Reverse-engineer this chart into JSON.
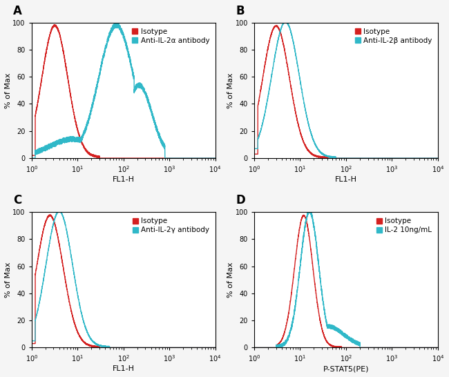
{
  "panels": [
    {
      "label": "A",
      "xlabel": "FL1-H",
      "ylabel": "% of Max",
      "legend": [
        "Isotype",
        "Anti-IL-2α antibody"
      ]
    },
    {
      "label": "B",
      "xlabel": "FL1-H",
      "ylabel": "% of Max",
      "legend": [
        "Isotype",
        "Anti-IL-2β antibody"
      ]
    },
    {
      "label": "C",
      "xlabel": "FL1-H",
      "ylabel": "% of Max",
      "legend": [
        "Isotype",
        "Anti-IL-2γ antibody"
      ]
    },
    {
      "label": "D",
      "xlabel": "P-STAT5(PE)",
      "ylabel": "% of Max",
      "legend": [
        "Isotype",
        "IL-2 10ng/mL"
      ]
    }
  ],
  "red_color": "#d42020",
  "cyan_color": "#30b8c8",
  "bg_color": "#f5f5f5",
  "plot_bg": "#ffffff",
  "xlim_log": [
    1,
    10000
  ],
  "ylim": [
    0,
    100
  ],
  "yticks": [
    0,
    20,
    40,
    60,
    80,
    100
  ],
  "legend_fontsize": 7.5,
  "label_fontsize": 8,
  "tick_fontsize": 7,
  "title_fontsize": 12
}
